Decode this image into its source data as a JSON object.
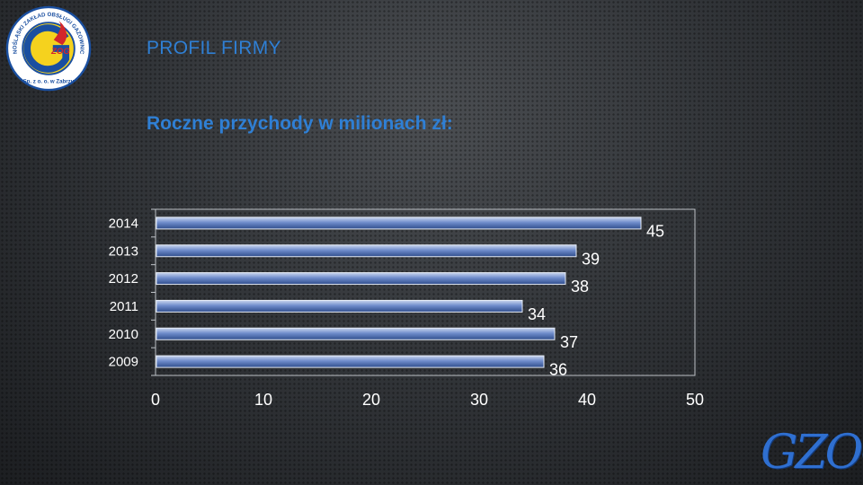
{
  "header": {
    "title": "PROFIL FIRMY",
    "subtitle": "Roczne przychody w milionach zł:"
  },
  "logo": {
    "ring_text": "GÓRNOŚLĄSKI ZAKŁAD OBSŁUGI GAZOWNICTWA",
    "bottom_text": "Sp. z o. o. w Zabrzu",
    "mark_text": "ZOG"
  },
  "brand": {
    "wordmark": "GZOG"
  },
  "colors": {
    "accent": "#2f7fd4",
    "bar_fill_top": "#b7c9ea",
    "bar_fill_bottom": "#3d5c9e",
    "text_light": "#ffffff",
    "logo_blue": "#1a4fa0",
    "logo_yellow": "#f5d21e",
    "logo_red": "#d3262b"
  },
  "chart_data": {
    "type": "bar",
    "orientation": "horizontal",
    "categories": [
      "2014",
      "2013",
      "2012",
      "2011",
      "2010",
      "2009"
    ],
    "values": [
      45,
      39,
      38,
      34,
      37,
      36
    ],
    "data_labels": [
      "45",
      "39",
      "38",
      "34",
      "37",
      "36"
    ],
    "xlim": [
      0,
      50
    ],
    "x_ticks": [
      "0",
      "10",
      "20",
      "30",
      "40",
      "50"
    ],
    "grid": false,
    "legend": "none"
  }
}
